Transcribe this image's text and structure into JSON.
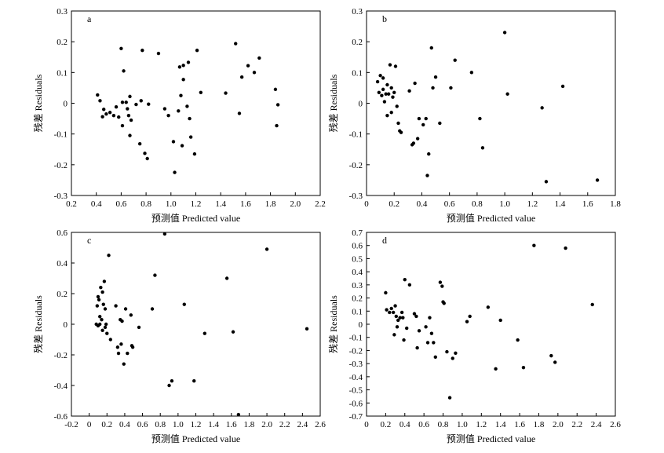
{
  "chart_data": [
    {
      "type": "scatter",
      "panel_label": "a",
      "xlabel": "预测值 Predicted value",
      "ylabel": "残差 Residuals",
      "xlim": [
        0.2,
        2.2
      ],
      "ylim": [
        -0.3,
        0.3
      ],
      "xticks": [
        0.2,
        0.4,
        0.6,
        0.8,
        1.0,
        1.2,
        1.4,
        1.6,
        1.8,
        2.0,
        2.2
      ],
      "xtick_labels": [
        "0.2",
        "0.4",
        "0.6",
        "0.8",
        "1.0",
        "1.2",
        "1.4",
        "1.6",
        "1.8",
        "2.0",
        "2.2"
      ],
      "yticks": [
        -0.3,
        -0.2,
        -0.1,
        0,
        0.1,
        0.2,
        0.3
      ],
      "ytick_labels": [
        "-0.3",
        "-0.2",
        "-0.1",
        "0",
        "0.1",
        "0.2",
        "0.3"
      ],
      "grid": false,
      "points": [
        [
          0.41,
          0.027
        ],
        [
          0.43,
          0.008
        ],
        [
          0.45,
          -0.044
        ],
        [
          0.46,
          -0.02
        ],
        [
          0.48,
          -0.035
        ],
        [
          0.51,
          -0.03
        ],
        [
          0.54,
          -0.04
        ],
        [
          0.56,
          -0.012
        ],
        [
          0.58,
          -0.045
        ],
        [
          0.6,
          0.178
        ],
        [
          0.61,
          0.003
        ],
        [
          0.61,
          -0.073
        ],
        [
          0.62,
          0.105
        ],
        [
          0.64,
          0.003
        ],
        [
          0.65,
          -0.018
        ],
        [
          0.66,
          -0.04
        ],
        [
          0.67,
          0.022
        ],
        [
          0.67,
          -0.105
        ],
        [
          0.68,
          -0.055
        ],
        [
          0.72,
          -0.004
        ],
        [
          0.75,
          -0.132
        ],
        [
          0.76,
          0.008
        ],
        [
          0.77,
          0.172
        ],
        [
          0.79,
          -0.163
        ],
        [
          0.81,
          -0.18
        ],
        [
          0.82,
          -0.003
        ],
        [
          0.9,
          0.162
        ],
        [
          0.95,
          -0.018
        ],
        [
          0.98,
          -0.04
        ],
        [
          1.02,
          -0.125
        ],
        [
          1.03,
          -0.225
        ],
        [
          1.06,
          -0.025
        ],
        [
          1.07,
          0.118
        ],
        [
          1.08,
          0.025
        ],
        [
          1.09,
          -0.138
        ],
        [
          1.1,
          0.077
        ],
        [
          1.1,
          0.123
        ],
        [
          1.13,
          -0.01
        ],
        [
          1.14,
          0.133
        ],
        [
          1.15,
          -0.05
        ],
        [
          1.16,
          -0.11
        ],
        [
          1.19,
          -0.165
        ],
        [
          1.21,
          0.172
        ],
        [
          1.24,
          0.035
        ],
        [
          1.44,
          0.033
        ],
        [
          1.52,
          0.194
        ],
        [
          1.55,
          -0.033
        ],
        [
          1.57,
          0.085
        ],
        [
          1.62,
          0.122
        ],
        [
          1.67,
          0.1
        ],
        [
          1.71,
          0.147
        ],
        [
          1.84,
          0.045
        ],
        [
          1.85,
          -0.073
        ],
        [
          1.86,
          -0.005
        ]
      ]
    },
    {
      "type": "scatter",
      "panel_label": "b",
      "xlabel": "预测值 Predicted value",
      "ylabel": "残差 Residuals",
      "xlim": [
        0,
        1.8
      ],
      "ylim": [
        -0.3,
        0.3
      ],
      "xticks": [
        0,
        0.2,
        0.4,
        0.6,
        0.8,
        1.0,
        1.2,
        1.4,
        1.6,
        1.8
      ],
      "xtick_labels": [
        "0",
        "0.2",
        "0.4",
        "0.6",
        "0.8",
        "1.0",
        "1.2",
        "1.4",
        "1.6",
        "1.8"
      ],
      "yticks": [
        -0.3,
        -0.2,
        -0.1,
        0,
        0.1,
        0.2,
        0.3
      ],
      "ytick_labels": [
        "-0.3",
        "-0.2",
        "-0.1",
        "0",
        "0.1",
        "0.2",
        "0.3"
      ],
      "grid": false,
      "points": [
        [
          0.08,
          0.07
        ],
        [
          0.09,
          0.035
        ],
        [
          0.1,
          0.09
        ],
        [
          0.11,
          0.025
        ],
        [
          0.12,
          0.082
        ],
        [
          0.12,
          0.045
        ],
        [
          0.13,
          0.005
        ],
        [
          0.14,
          0.03
        ],
        [
          0.15,
          -0.04
        ],
        [
          0.15,
          0.06
        ],
        [
          0.16,
          0.03
        ],
        [
          0.17,
          0.125
        ],
        [
          0.18,
          0.05
        ],
        [
          0.18,
          -0.03
        ],
        [
          0.19,
          0.02
        ],
        [
          0.2,
          0.035
        ],
        [
          0.21,
          0.12
        ],
        [
          0.22,
          -0.01
        ],
        [
          0.23,
          -0.065
        ],
        [
          0.24,
          -0.09
        ],
        [
          0.25,
          -0.095
        ],
        [
          0.31,
          0.04
        ],
        [
          0.33,
          -0.135
        ],
        [
          0.34,
          -0.13
        ],
        [
          0.35,
          0.065
        ],
        [
          0.37,
          -0.115
        ],
        [
          0.38,
          -0.05
        ],
        [
          0.41,
          -0.07
        ],
        [
          0.43,
          -0.05
        ],
        [
          0.44,
          -0.235
        ],
        [
          0.45,
          -0.165
        ],
        [
          0.47,
          0.18
        ],
        [
          0.48,
          0.05
        ],
        [
          0.5,
          0.085
        ],
        [
          0.53,
          -0.065
        ],
        [
          0.61,
          0.05
        ],
        [
          0.64,
          0.14
        ],
        [
          0.76,
          0.1
        ],
        [
          0.82,
          -0.05
        ],
        [
          0.84,
          -0.145
        ],
        [
          1.0,
          0.23
        ],
        [
          1.02,
          0.03
        ],
        [
          1.27,
          -0.015
        ],
        [
          1.3,
          -0.255
        ],
        [
          1.42,
          0.055
        ],
        [
          1.67,
          -0.25
        ]
      ]
    },
    {
      "type": "scatter",
      "panel_label": "c",
      "xlabel": "预测值 Predicted value",
      "ylabel": "残差 Residuals",
      "xlim": [
        -0.2,
        2.6
      ],
      "ylim": [
        -0.6,
        0.6
      ],
      "xticks": [
        -0.2,
        0,
        0.2,
        0.4,
        0.6,
        0.8,
        1.0,
        1.2,
        1.4,
        1.6,
        1.8,
        2.0,
        2.2,
        2.4,
        2.6
      ],
      "xtick_labels": [
        "-0.2",
        "0",
        "0.2",
        "0.4",
        "0.6",
        "0.8",
        "1.0",
        "1.2",
        "1.4",
        "1.6",
        "1.8",
        "2.0",
        "2.2",
        "2.4",
        "2.6"
      ],
      "yticks": [
        -0.6,
        -0.4,
        -0.2,
        0,
        0.2,
        0.4,
        0.6
      ],
      "ytick_labels": [
        "-0.6",
        "-0.4",
        "-0.2",
        "0",
        "0.2",
        "0.4",
        "0.6"
      ],
      "grid": false,
      "points": [
        [
          0.08,
          0.0
        ],
        [
          0.09,
          0.12
        ],
        [
          0.1,
          0.18
        ],
        [
          0.1,
          -0.01
        ],
        [
          0.11,
          0.16
        ],
        [
          0.12,
          0.0
        ],
        [
          0.12,
          0.05
        ],
        [
          0.13,
          0.24
        ],
        [
          0.14,
          0.03
        ],
        [
          0.15,
          0.21
        ],
        [
          0.15,
          -0.04
        ],
        [
          0.16,
          0.13
        ],
        [
          0.17,
          0.28
        ],
        [
          0.18,
          -0.02
        ],
        [
          0.18,
          0.1
        ],
        [
          0.19,
          0.0
        ],
        [
          0.2,
          -0.06
        ],
        [
          0.22,
          0.45
        ],
        [
          0.24,
          -0.1
        ],
        [
          0.3,
          0.12
        ],
        [
          0.32,
          -0.15
        ],
        [
          0.33,
          -0.19
        ],
        [
          0.35,
          0.03
        ],
        [
          0.36,
          -0.13
        ],
        [
          0.37,
          0.02
        ],
        [
          0.39,
          -0.26
        ],
        [
          0.41,
          0.1
        ],
        [
          0.43,
          -0.19
        ],
        [
          0.47,
          0.06
        ],
        [
          0.48,
          -0.14
        ],
        [
          0.49,
          -0.15
        ],
        [
          0.56,
          -0.02
        ],
        [
          0.71,
          0.1
        ],
        [
          0.74,
          0.32
        ],
        [
          0.85,
          0.59
        ],
        [
          0.9,
          -0.4
        ],
        [
          0.93,
          -0.37
        ],
        [
          1.07,
          0.13
        ],
        [
          1.18,
          -0.37
        ],
        [
          1.3,
          -0.06
        ],
        [
          1.55,
          0.3
        ],
        [
          1.62,
          -0.05
        ],
        [
          1.68,
          -0.59
        ],
        [
          2.0,
          0.49
        ],
        [
          2.45,
          -0.03
        ]
      ]
    },
    {
      "type": "scatter",
      "panel_label": "d",
      "xlabel": "预测值 Predicted value",
      "ylabel": "残差 Residuals",
      "xlim": [
        0,
        2.6
      ],
      "ylim": [
        -0.7,
        0.7
      ],
      "xticks": [
        0,
        0.2,
        0.4,
        0.6,
        0.8,
        1.0,
        1.2,
        1.4,
        1.6,
        1.8,
        2.0,
        2.2,
        2.4,
        2.6
      ],
      "xtick_labels": [
        "0",
        "0.2",
        "0.4",
        "0.6",
        "0.8",
        "1.0",
        "1.2",
        "1.4",
        "1.6",
        "1.8",
        "2.0",
        "2.2",
        "2.4",
        "2.6"
      ],
      "yticks": [
        -0.7,
        -0.6,
        -0.5,
        -0.4,
        -0.3,
        -0.2,
        -0.1,
        0,
        0.1,
        0.2,
        0.3,
        0.4,
        0.5,
        0.6,
        0.7
      ],
      "ytick_labels": [
        "-0.7",
        "-0.6",
        "-0.5",
        "-0.4",
        "-0.3",
        "-0.2",
        "-0.1",
        "0",
        "0.1",
        "0.2",
        "0.3",
        "0.4",
        "0.5",
        "0.6",
        "0.7"
      ],
      "grid": false,
      "points": [
        [
          0.2,
          0.24
        ],
        [
          0.21,
          0.11
        ],
        [
          0.24,
          0.09
        ],
        [
          0.26,
          0.12
        ],
        [
          0.28,
          0.09
        ],
        [
          0.29,
          -0.08
        ],
        [
          0.3,
          0.14
        ],
        [
          0.31,
          0.06
        ],
        [
          0.32,
          -0.02
        ],
        [
          0.33,
          0.03
        ],
        [
          0.35,
          0.05
        ],
        [
          0.37,
          0.09
        ],
        [
          0.38,
          0.05
        ],
        [
          0.39,
          -0.12
        ],
        [
          0.4,
          0.34
        ],
        [
          0.42,
          -0.03
        ],
        [
          0.45,
          0.3
        ],
        [
          0.5,
          0.08
        ],
        [
          0.52,
          0.06
        ],
        [
          0.53,
          -0.18
        ],
        [
          0.55,
          -0.05
        ],
        [
          0.62,
          -0.02
        ],
        [
          0.64,
          -0.14
        ],
        [
          0.66,
          0.05
        ],
        [
          0.68,
          -0.07
        ],
        [
          0.7,
          -0.14
        ],
        [
          0.72,
          -0.25
        ],
        [
          0.77,
          0.32
        ],
        [
          0.79,
          0.29
        ],
        [
          0.8,
          0.17
        ],
        [
          0.81,
          0.16
        ],
        [
          0.84,
          -0.21
        ],
        [
          0.87,
          -0.56
        ],
        [
          0.9,
          -0.26
        ],
        [
          0.93,
          -0.22
        ],
        [
          1.05,
          0.02
        ],
        [
          1.08,
          0.06
        ],
        [
          1.27,
          0.13
        ],
        [
          1.35,
          -0.34
        ],
        [
          1.4,
          0.03
        ],
        [
          1.58,
          -0.12
        ],
        [
          1.64,
          -0.33
        ],
        [
          1.75,
          0.6
        ],
        [
          1.93,
          -0.24
        ],
        [
          1.97,
          -0.29
        ],
        [
          2.08,
          0.58
        ],
        [
          2.36,
          0.15
        ]
      ]
    }
  ]
}
